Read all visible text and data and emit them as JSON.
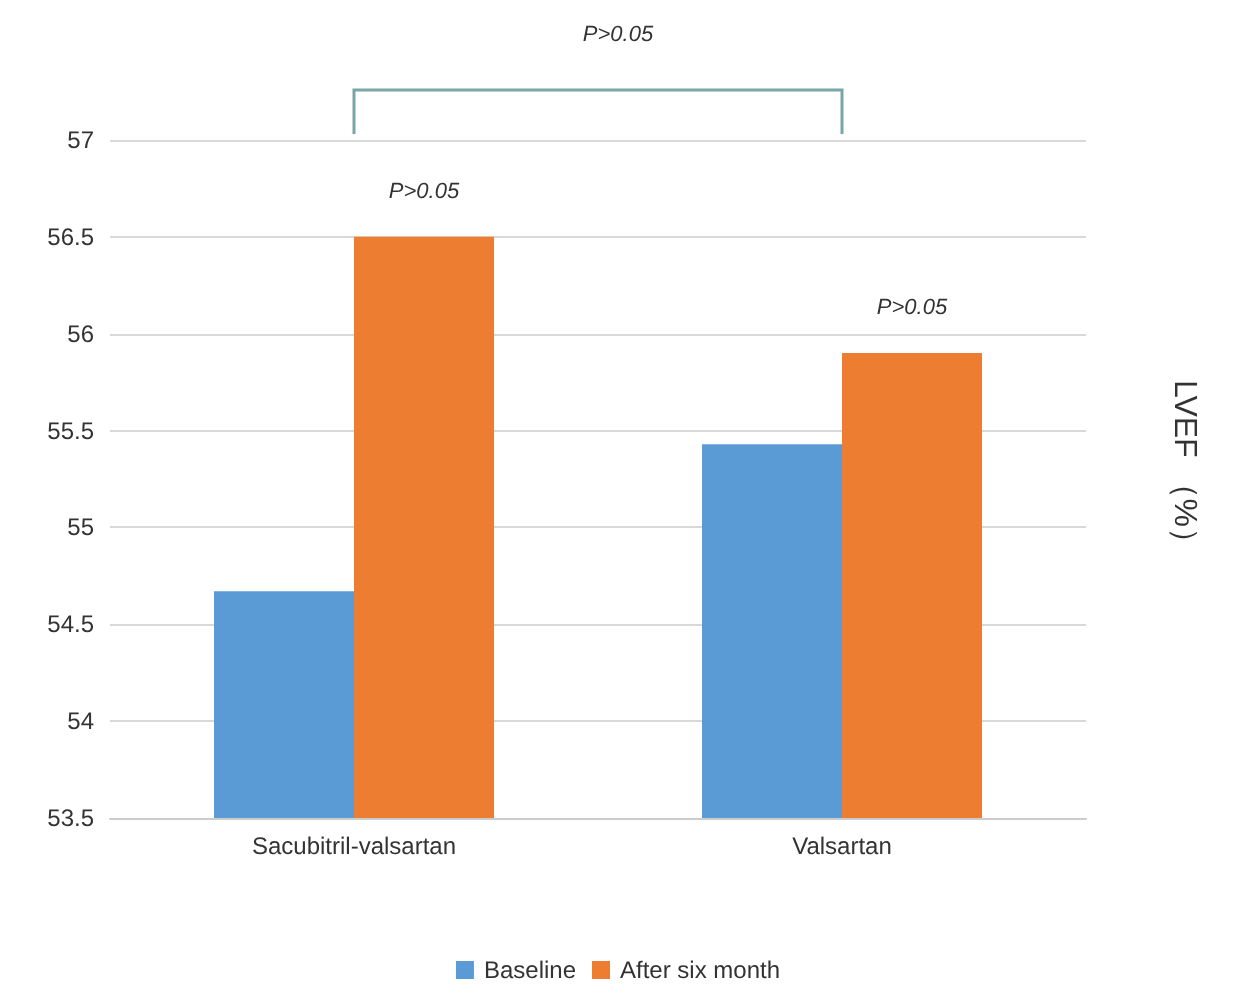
{
  "chart_data": {
    "type": "bar",
    "ylabel": "LVEF （%）",
    "categories": [
      "Sacubitril-valsartan",
      "Valsartan"
    ],
    "series": [
      {
        "name": "Baseline",
        "color": "#5b9bd5",
        "values": [
          54.67,
          55.43
        ]
      },
      {
        "name": "After six month",
        "color": "#ed7d31",
        "values": [
          56.5,
          55.9
        ]
      }
    ],
    "ylim": [
      53.5,
      57
    ],
    "yticks": [
      53.5,
      54,
      54.5,
      55,
      55.5,
      56,
      56.5,
      57
    ],
    "grid": "y",
    "legend": "bottom",
    "annotations": [
      "P>0.05",
      {
        "text": "P>0.05",
        "x": "Sacubitril-valsartan",
        "y": 56.5
      },
      {
        "text": "P>0.05",
        "x": "Valsartan",
        "y": 55.9
      }
    ]
  }
}
